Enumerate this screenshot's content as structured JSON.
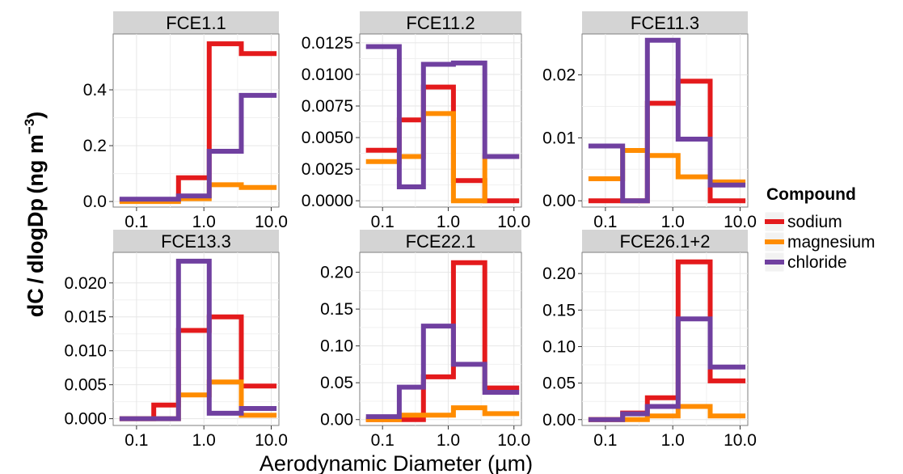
{
  "chart_data": {
    "type": "step",
    "facet_layout": "2x3",
    "xlabel": "Aerodynamic Diameter (µm)",
    "ylabel": "dC/dlogDp (ng m-3)",
    "ylabel_parts": {
      "main": "dC / dlogDp (ng m",
      "sup": "−3",
      "close": ")"
    },
    "x_scale": "log",
    "x_ticks": [
      0.1,
      1.0,
      10.0
    ],
    "x_tick_labels": [
      "0.1",
      "1.0",
      "10.0"
    ],
    "xlim": [
      0.045,
      13
    ],
    "grid": true,
    "legend": {
      "title": "Compound",
      "position": "right",
      "entries": [
        "sodium",
        "magnesium",
        "chloride"
      ]
    },
    "colors": {
      "sodium": "#e41a1c",
      "magnesium": "#ff8c00",
      "chloride": "#7040a0"
    },
    "bin_edges": [
      0.056,
      0.18,
      0.42,
      1.2,
      3.6,
      12
    ],
    "panels": [
      {
        "title": "FCE1.1",
        "ylim": [
          -0.02,
          0.6
        ],
        "y_ticks": [
          0.0,
          0.2,
          0.4
        ],
        "y_tick_labels": [
          "0.0",
          "0.2",
          "0.4"
        ],
        "series": [
          {
            "name": "sodium",
            "values": [
              0.005,
              0.005,
              0.085,
              0.565,
              0.53
            ]
          },
          {
            "name": "magnesium",
            "values": [
              0.0,
              0.0,
              0.01,
              0.06,
              0.05
            ]
          },
          {
            "name": "chloride",
            "values": [
              0.008,
              0.008,
              0.02,
              0.18,
              0.38
            ]
          }
        ]
      },
      {
        "title": "FCE11.2",
        "ylim": [
          -0.0005,
          0.0132
        ],
        "y_ticks": [
          0.0,
          0.0025,
          0.005,
          0.0075,
          0.01,
          0.0125
        ],
        "y_tick_labels": [
          "0.0000",
          "0.0025",
          "0.0050",
          "0.0075",
          "0.0100",
          "0.0125"
        ],
        "series": [
          {
            "name": "sodium",
            "values": [
              0.004,
              0.0064,
              0.009,
              0.0016,
              0.0
            ]
          },
          {
            "name": "magnesium",
            "values": [
              0.0031,
              0.0035,
              0.0069,
              0.0,
              0.0035
            ]
          },
          {
            "name": "chloride",
            "values": [
              0.0122,
              0.0011,
              0.0108,
              0.0109,
              0.0035
            ]
          }
        ]
      },
      {
        "title": "FCE11.3",
        "ylim": [
          -0.001,
          0.0265
        ],
        "y_ticks": [
          0.0,
          0.01,
          0.02
        ],
        "y_tick_labels": [
          "0.00",
          "0.01",
          "0.02"
        ],
        "series": [
          {
            "name": "sodium",
            "values": [
              0.0,
              0.0,
              0.0155,
              0.019,
              0.0
            ]
          },
          {
            "name": "magnesium",
            "values": [
              0.0035,
              0.008,
              0.0072,
              0.0038,
              0.003
            ]
          },
          {
            "name": "chloride",
            "values": [
              0.0087,
              0.0,
              0.0255,
              0.0098,
              0.0025
            ]
          }
        ]
      },
      {
        "title": "FCE13.3",
        "ylim": [
          -0.001,
          0.0245
        ],
        "y_ticks": [
          0.0,
          0.005,
          0.01,
          0.015,
          0.02
        ],
        "y_tick_labels": [
          "0.000",
          "0.005",
          "0.010",
          "0.015",
          "0.020"
        ],
        "series": [
          {
            "name": "sodium",
            "values": [
              0.0,
              0.002,
              0.013,
              0.015,
              0.0048
            ]
          },
          {
            "name": "magnesium",
            "values": [
              0.0,
              0.0,
              0.0035,
              0.0054,
              0.0005
            ]
          },
          {
            "name": "chloride",
            "values": [
              0.0,
              0.0,
              0.0232,
              0.0008,
              0.0015
            ]
          }
        ]
      },
      {
        "title": "FCE22.1",
        "ylim": [
          -0.008,
          0.227
        ],
        "y_ticks": [
          0.0,
          0.05,
          0.1,
          0.15,
          0.2
        ],
        "y_tick_labels": [
          "0.00",
          "0.05",
          "0.10",
          "0.15",
          "0.20"
        ],
        "series": [
          {
            "name": "sodium",
            "values": [
              0.0,
              0.0,
              0.058,
              0.213,
              0.043
            ]
          },
          {
            "name": "magnesium",
            "values": [
              0.0,
              0.006,
              0.006,
              0.016,
              0.008
            ]
          },
          {
            "name": "chloride",
            "values": [
              0.004,
              0.044,
              0.127,
              0.075,
              0.037
            ]
          }
        ]
      },
      {
        "title": "FCE26.1+2",
        "ylim": [
          -0.008,
          0.229
        ],
        "y_ticks": [
          0.0,
          0.05,
          0.1,
          0.15,
          0.2
        ],
        "y_tick_labels": [
          "0.00",
          "0.05",
          "0.10",
          "0.15",
          "0.20"
        ],
        "series": [
          {
            "name": "sodium",
            "values": [
              0.0,
              0.009,
              0.03,
              0.216,
              0.053
            ]
          },
          {
            "name": "magnesium",
            "values": [
              0.0,
              0.0,
              0.005,
              0.018,
              0.005
            ]
          },
          {
            "name": "chloride",
            "values": [
              0.0,
              0.008,
              0.018,
              0.138,
              0.072
            ]
          }
        ]
      }
    ]
  }
}
